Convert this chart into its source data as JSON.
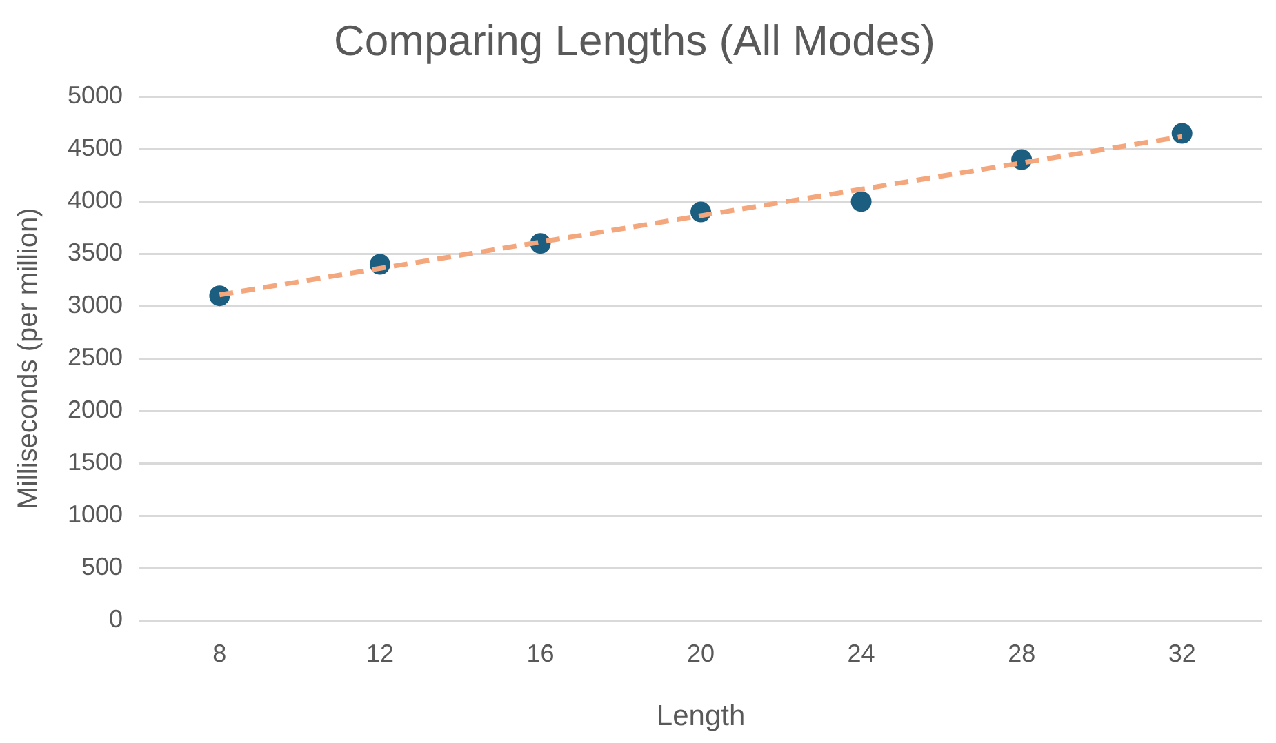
{
  "chart_data": {
    "type": "scatter",
    "title": "Comparing Lengths (All Modes)",
    "xlabel": "Length",
    "ylabel": "Milliseconds (per million)",
    "x": [
      8,
      12,
      16,
      20,
      24,
      28,
      32
    ],
    "xlim": [
      6,
      34
    ],
    "xticks": [
      8,
      12,
      16,
      20,
      24,
      28,
      32
    ],
    "ylim": [
      0,
      5000
    ],
    "yticks": [
      0,
      500,
      1000,
      1500,
      2000,
      2500,
      3000,
      3500,
      4000,
      4500,
      5000
    ],
    "grid": "y",
    "marker": "circle",
    "series": [
      {
        "color": "#1b5e80",
        "values": [
          3100,
          3400,
          3600,
          3900,
          4000,
          4400,
          4650
        ]
      },
      {
        "type": "line",
        "x": [
          8,
          32
        ],
        "values": [
          3110,
          4620
        ],
        "color": "#f4a77c",
        "line_style": "dashed",
        "marker": "none"
      }
    ]
  }
}
